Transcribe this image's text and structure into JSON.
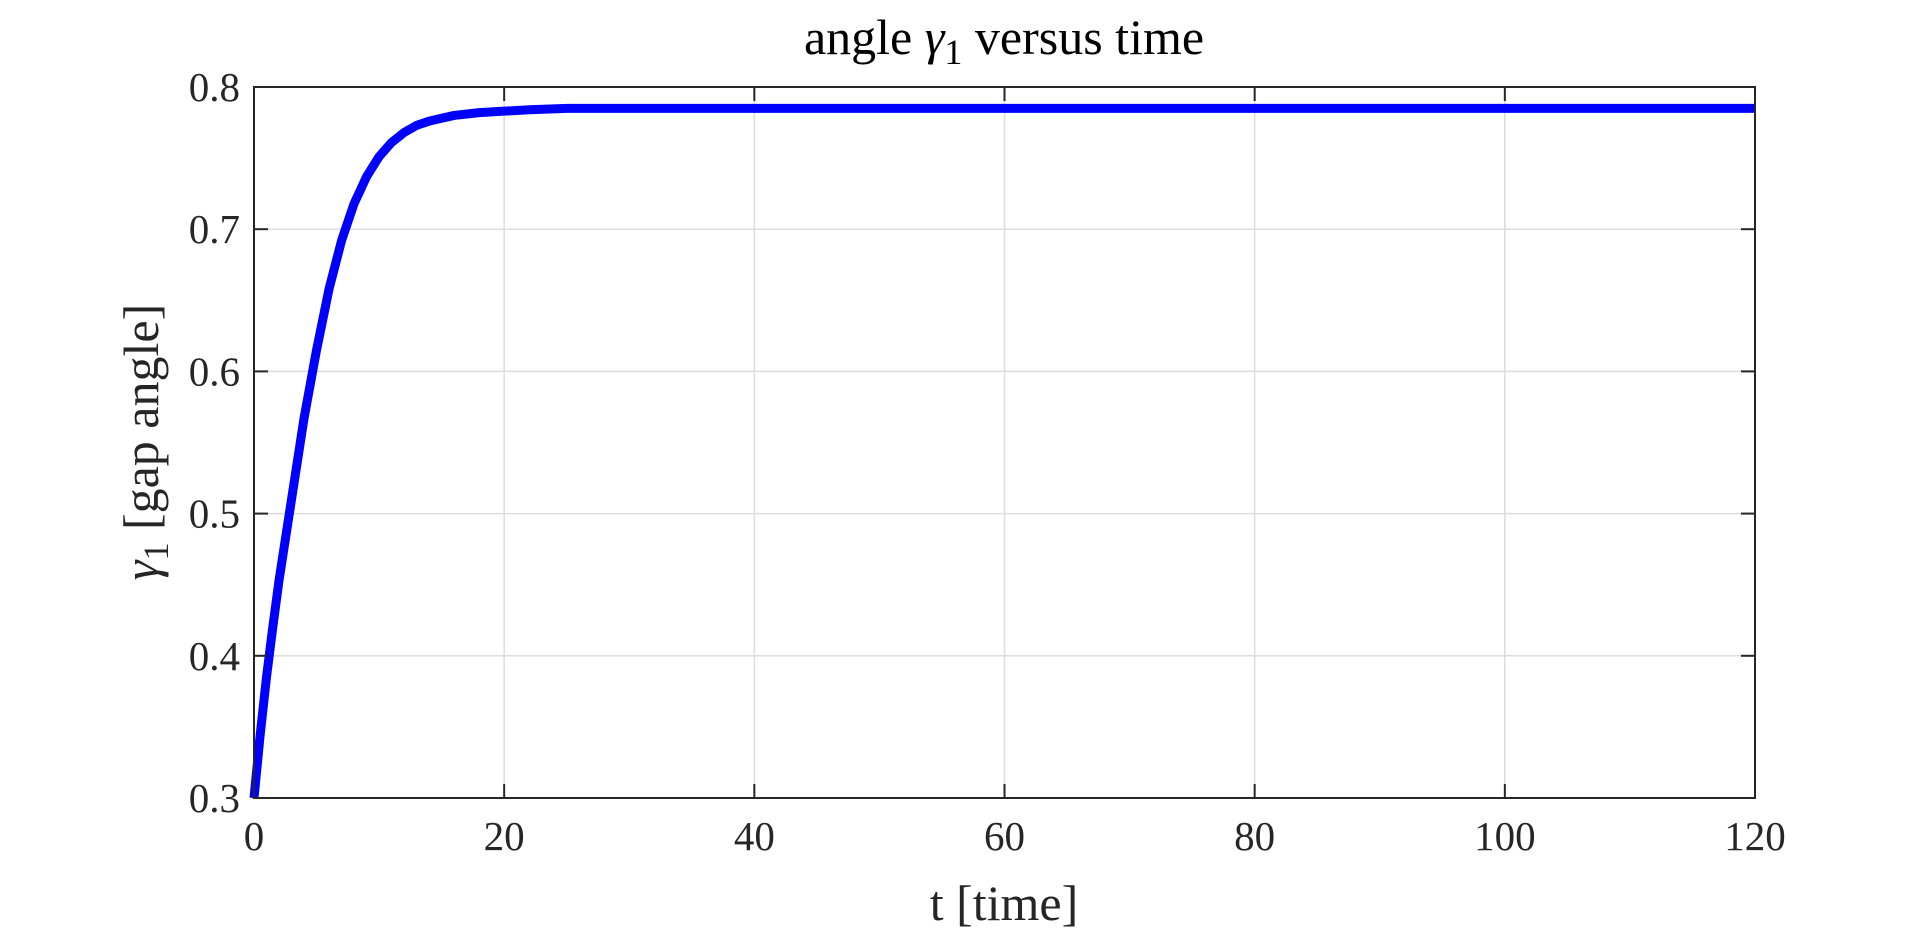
{
  "chart_data": {
    "type": "line",
    "title": {
      "prefix": "angle ",
      "symbol": "γ",
      "subscript": "1",
      "suffix": " versus time"
    },
    "xlabel": "t [time]",
    "ylabel": {
      "symbol": "γ",
      "subscript": "1",
      "suffix": " [gap angle]"
    },
    "xlim": [
      0,
      120
    ],
    "ylim": [
      0.3,
      0.8
    ],
    "xticks": [
      "0",
      "20",
      "40",
      "60",
      "80",
      "100",
      "120"
    ],
    "yticks": [
      "0.3",
      "0.4",
      "0.5",
      "0.6",
      "0.7",
      "0.8"
    ],
    "grid": true,
    "series": [
      {
        "color": "#0000ff",
        "x": [
          0,
          0.5,
          1,
          1.5,
          2,
          3,
          4,
          5,
          6,
          7,
          8,
          9,
          10,
          11,
          12,
          13,
          14,
          15,
          16,
          18,
          20,
          22,
          25,
          30,
          35,
          40,
          50,
          60,
          70,
          80,
          90,
          100,
          110,
          120
        ],
        "y": [
          0.3,
          0.345,
          0.385,
          0.42,
          0.453,
          0.51,
          0.567,
          0.615,
          0.658,
          0.692,
          0.718,
          0.737,
          0.751,
          0.761,
          0.768,
          0.773,
          0.776,
          0.778,
          0.78,
          0.782,
          0.783,
          0.784,
          0.785,
          0.785,
          0.785,
          0.785,
          0.785,
          0.785,
          0.785,
          0.785,
          0.785,
          0.785,
          0.785,
          0.785
        ]
      }
    ],
    "colors": {
      "line": "#0000ff",
      "grid": "#dcdcdc",
      "axes": "#262626"
    }
  }
}
